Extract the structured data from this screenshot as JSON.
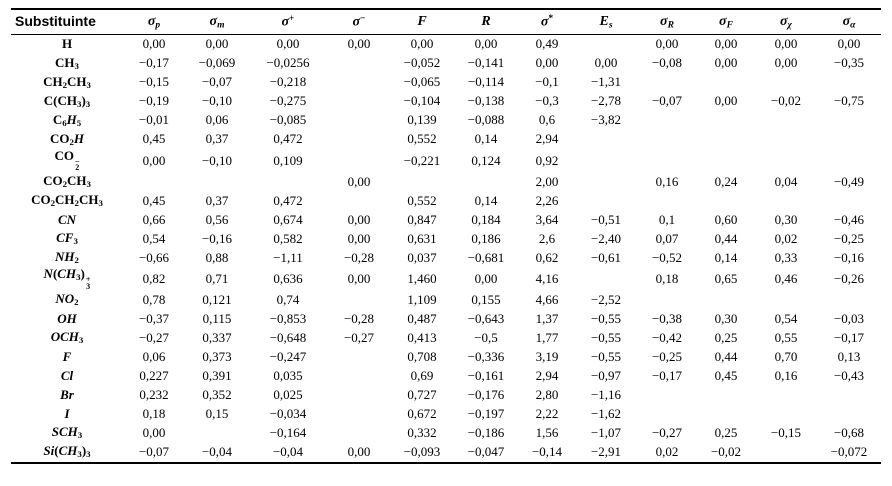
{
  "page": {
    "background": "#ffffff",
    "text_color": "#000000",
    "language": "pt"
  },
  "table": {
    "columns": [
      {
        "id": "substituinte",
        "html": "Substituinte"
      },
      {
        "id": "sigma-p",
        "html": "<i>σ<sub>p</sub></i>"
      },
      {
        "id": "sigma-m",
        "html": "<i>σ<sub>m</sub></i>"
      },
      {
        "id": "sigma-plus",
        "html": "<i>σ</i><sup>+</sup>"
      },
      {
        "id": "sigma-minus",
        "html": "<i>σ</i><sup>−</sup>"
      },
      {
        "id": "F",
        "html": "<i>F</i>"
      },
      {
        "id": "R",
        "html": "<i>R</i>"
      },
      {
        "id": "sigma-star",
        "html": "<i>σ</i><sup>*</sup>"
      },
      {
        "id": "Es",
        "html": "<i>E<sub>s</sub></i>"
      },
      {
        "id": "sigma-R",
        "html": "<i>σ<sub>R</sub></i>"
      },
      {
        "id": "sigma-F",
        "html": "<i>σ<sub>F</sub></i>"
      },
      {
        "id": "sigma-chi",
        "html": "<i>σ<sub>χ</sub></i>"
      },
      {
        "id": "sigma-alpha",
        "html": "<i>σ<sub>α</sub></i>"
      }
    ],
    "rows": [
      {
        "substituent_html": "H",
        "values": [
          "0,00",
          "0,00",
          "0,00",
          "0,00",
          "0,00",
          "0,00",
          "0,49",
          "",
          "0,00",
          "0,00",
          "0,00",
          "0,00"
        ]
      },
      {
        "substituent_html": "CH<sub>3</sub>",
        "values": [
          "−0,17",
          "−0,069",
          "−0,0256",
          "",
          "−0,052",
          "−0,141",
          "0,00",
          "0,00",
          "−0,08",
          "0,00",
          "0,00",
          "−0,35"
        ]
      },
      {
        "substituent_html": "CH<sub>2</sub>CH<sub>3</sub>",
        "values": [
          "−0,15",
          "−0,07",
          "−0,218",
          "",
          "−0,065",
          "−0,114",
          "−0,1",
          "−1,31",
          "",
          "",
          "",
          ""
        ]
      },
      {
        "substituent_html": "C(CH<sub>3</sub>)<sub>3</sub>",
        "values": [
          "−0,19",
          "−0,10",
          "−0,275",
          "",
          "−0,104",
          "−0,138",
          "−0,3",
          "−2,78",
          "−0,07",
          "0,00",
          "−0,02",
          "−0,75"
        ]
      },
      {
        "substituent_html": "C<sub>6</sub><i>H</i><sub>5</sub>",
        "values": [
          "−0,01",
          "0,06",
          "−0,085",
          "",
          "0,139",
          "−0,088",
          "0,6",
          "−3,82",
          "",
          "",
          "",
          ""
        ]
      },
      {
        "substituent_html": "CO<sub>2</sub><i>H</i>",
        "values": [
          "0,45",
          "0,37",
          "0,472",
          "",
          "0,552",
          "0,14",
          "2,94",
          "",
          "",
          "",
          "",
          ""
        ]
      },
      {
        "substituent_html": "CO<span class=\"stk\"><span>−</span><span>2</span></span>",
        "values": [
          "0,00",
          "−0,10",
          "0,109",
          "",
          "−0,221",
          "0,124",
          "0,92",
          "",
          "",
          "",
          "",
          ""
        ]
      },
      {
        "substituent_html": "CO<sub>2</sub>CH<sub>3</sub>",
        "values": [
          "",
          "",
          "",
          "0,00",
          "",
          "",
          "2,00",
          "",
          "0,16",
          "0,24",
          "0,04",
          "−0,49"
        ]
      },
      {
        "substituent_html": "CO<sub>2</sub>CH<sub>2</sub>CH<sub>3</sub>",
        "values": [
          "0,45",
          "0,37",
          "0,472",
          "",
          "0,552",
          "0,14",
          "2,26",
          "",
          "",
          "",
          "",
          ""
        ]
      },
      {
        "substituent_html": "<i>CN</i>",
        "values": [
          "0,66",
          "0,56",
          "0,674",
          "0,00",
          "0,847",
          "0,184",
          "3,64",
          "−0,51",
          "0,1",
          "0,60",
          "0,30",
          "−0,46"
        ]
      },
      {
        "substituent_html": "<i>CF</i><sub>3</sub>",
        "values": [
          "0,54",
          "−0,16",
          "0,582",
          "0,00",
          "0,631",
          "0,186",
          "2,6",
          "−2,40",
          "0,07",
          "0,44",
          "0,02",
          "−0,25"
        ]
      },
      {
        "substituent_html": "<i>NH</i><sub>2</sub>",
        "values": [
          "−0,66",
          "0,88",
          "−1,11",
          "−0,28",
          "0,037",
          "−0,681",
          "0,62",
          "−0,61",
          "−0,52",
          "0,14",
          "0,33",
          "−0,16"
        ]
      },
      {
        "substituent_html": "<i>N</i>(<i>CH</i><sub>3</sub>)<span class=\"stk\"><span>+</span><span>3</span></span>",
        "values": [
          "0,82",
          "0,71",
          "0,636",
          "0,00",
          "1,460",
          "0,00",
          "4,16",
          "",
          "0,18",
          "0,65",
          "0,46",
          "−0,26"
        ]
      },
      {
        "substituent_html": "<i>NO</i><sub>2</sub>",
        "values": [
          "0,78",
          "0,121",
          "0,74",
          "",
          "1,109",
          "0,155",
          "4,66",
          "−2,52",
          "",
          "",
          "",
          ""
        ]
      },
      {
        "substituent_html": "<i>OH</i>",
        "values": [
          "−0,37",
          "0,115",
          "−0,853",
          "−0,28",
          "0,487",
          "−0,643",
          "1,37",
          "−0,55",
          "−0,38",
          "0,30",
          "0,54",
          "−0,03"
        ]
      },
      {
        "substituent_html": "<i>OCH</i><sub>3</sub>",
        "values": [
          "−0,27",
          "0,337",
          "−0,648",
          "−0,27",
          "0,413",
          "−0,5",
          "1,77",
          "−0,55",
          "−0,42",
          "0,25",
          "0,55",
          "−0,17"
        ]
      },
      {
        "substituent_html": "<i>F</i>",
        "values": [
          "0,06",
          "0,373",
          "−0,247",
          "",
          "0,708",
          "−0,336",
          "3,19",
          "−0,55",
          "−0,25",
          "0,44",
          "0,70",
          "0,13"
        ]
      },
      {
        "substituent_html": "<i>Cl</i>",
        "values": [
          "0,227",
          "0,391",
          "0,035",
          "",
          "0,69",
          "−0,161",
          "2,94",
          "−0,97",
          "−0,17",
          "0,45",
          "0,16",
          "−0,43"
        ]
      },
      {
        "substituent_html": "<i>Br</i>",
        "values": [
          "0,232",
          "0,352",
          "0,025",
          "",
          "0,727",
          "−0,176",
          "2,80",
          "−1,16",
          "",
          "",
          "",
          ""
        ]
      },
      {
        "substituent_html": "<i>I</i>",
        "values": [
          "0,18",
          "0,15",
          "−0,034",
          "",
          "0,672",
          "−0,197",
          "2,22",
          "−1,62",
          "",
          "",
          "",
          ""
        ]
      },
      {
        "substituent_html": "<i>SCH</i><sub>3</sub>",
        "values": [
          "0,00",
          "",
          "−0,164",
          "",
          "0,332",
          "−0,186",
          "1,56",
          "−1,07",
          "−0,27",
          "0,25",
          "−0,15",
          "−0,68"
        ]
      },
      {
        "substituent_html": "<i>Si</i>(<i>CH</i><sub>3</sub>)<sub>3</sub>",
        "values": [
          "−0,07",
          "−0,04",
          "−0,04",
          "0,00",
          "−0,093",
          "−0,047",
          "−0,14",
          "−2,91",
          "0,02",
          "−0,02",
          "",
          "−0,072"
        ]
      }
    ]
  }
}
